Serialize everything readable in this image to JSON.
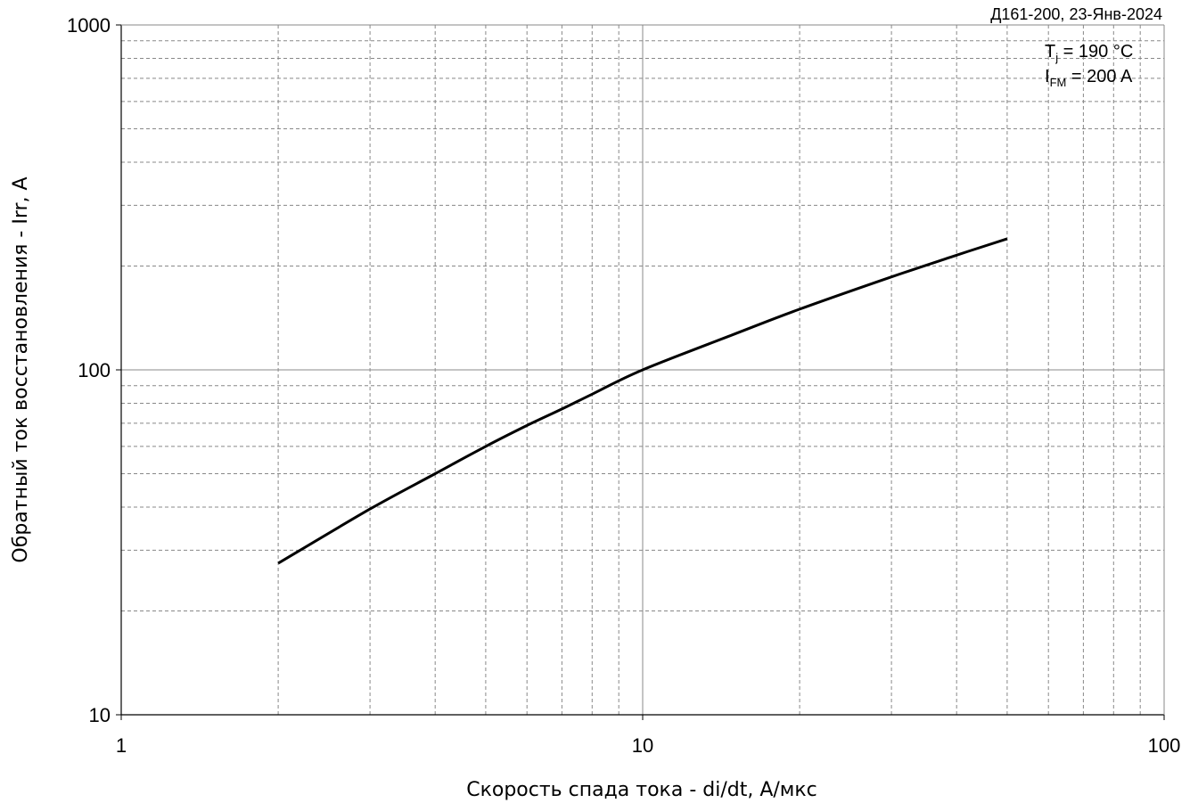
{
  "chart_data": {
    "type": "line",
    "title": "",
    "header_note": "Д161-200, 23-Янв-2024",
    "conditions": [
      {
        "symbol": "T",
        "subscript": "j",
        "value": " = 190 °C"
      },
      {
        "symbol": "I",
        "subscript": "FM",
        "value": " = 200 A"
      }
    ],
    "xlabel": "Скорость спада тока - di/dt, А/мкс",
    "ylabel": "Обратный ток восстановления - Irr, А",
    "x_scale": "log",
    "y_scale": "log",
    "xlim": [
      1,
      100
    ],
    "ylim": [
      10,
      1000
    ],
    "x_ticks": [
      "1",
      "10",
      "100"
    ],
    "y_ticks": [
      "10",
      "100",
      "1000"
    ],
    "grid": true,
    "legend": "none",
    "series": [
      {
        "color": "#000000",
        "x": [
          2,
          3,
          4,
          5,
          6,
          7,
          8,
          10,
          15,
          20,
          30,
          40,
          50
        ],
        "y": [
          27.5,
          39.5,
          50,
          60,
          69,
          77,
          85,
          100,
          127,
          150,
          186,
          215,
          240
        ]
      }
    ],
    "colors": {
      "grid": "#888888",
      "axis": "#000000",
      "line": "#000000"
    }
  }
}
